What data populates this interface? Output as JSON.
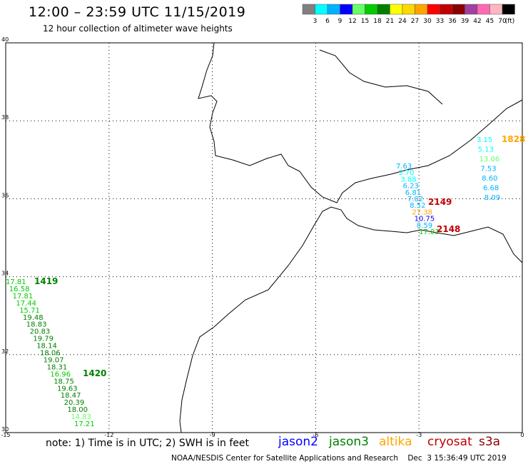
{
  "title": "12:00 – 23:59 UTC 11/15/2019",
  "subtitle": "12 hour collection of altimeter wave heights",
  "colorbar": {
    "unit": "(ft)",
    "bins": [
      {
        "label": "3",
        "color": "#808080"
      },
      {
        "label": "6",
        "color": "#00ffff"
      },
      {
        "label": "9",
        "color": "#00b2ff"
      },
      {
        "label": "12",
        "color": "#0000ff"
      },
      {
        "label": "15",
        "color": "#66ff66"
      },
      {
        "label": "18",
        "color": "#00cc00"
      },
      {
        "label": "21",
        "color": "#008000"
      },
      {
        "label": "24",
        "color": "#ffff00"
      },
      {
        "label": "27",
        "color": "#ffd700"
      },
      {
        "label": "30",
        "color": "#ffa500"
      },
      {
        "label": "33",
        "color": "#ff0000"
      },
      {
        "label": "36",
        "color": "#c00000"
      },
      {
        "label": "39",
        "color": "#8b0000"
      },
      {
        "label": "42",
        "color": "#a0409f"
      },
      {
        "label": "45",
        "color": "#ff69b4"
      },
      {
        "label": "70",
        "color": "#ffb6c1"
      },
      {
        "label": "",
        "color": "#000000"
      }
    ]
  },
  "axes": {
    "lat_ticks": [
      "40",
      "38",
      "36",
      "34",
      "32",
      "30"
    ],
    "lon_ticks": [
      "-15",
      "-12",
      "-9",
      "-6",
      "-3",
      "0"
    ]
  },
  "tracks": [
    {
      "satellite": "jason3",
      "time_labels": [
        "1419",
        "1420"
      ],
      "values": [
        "17.81",
        "16.58",
        "17.81",
        "17.44",
        "15.71",
        "19.48",
        "18.83",
        "20.83",
        "19.79",
        "18.14",
        "18.06",
        "19.07",
        "18.31",
        "16.96",
        "18.75",
        "19.63",
        "18.47",
        "20.39",
        "18.00",
        "14.83",
        "17.21"
      ]
    },
    {
      "satellite": "cryosat",
      "time_labels": [
        "2149",
        "2148"
      ],
      "values": [
        "7.63",
        "3.70",
        "3.88",
        "6.23",
        "6.81",
        "7.02",
        "8.52",
        "27.38",
        "10.75",
        "8.59",
        "17.03"
      ]
    },
    {
      "satellite": "altika",
      "time_labels": [
        "1828"
      ],
      "values": [
        "3.15",
        "5.13",
        "13.06",
        "7.53",
        "8.60",
        "6.68",
        "8.09"
      ]
    }
  ],
  "footer": {
    "note": "note:  1) Time is in UTC;  2) SWH is in feet",
    "satellites": [
      {
        "name": "jason2",
        "color": "#0000ff"
      },
      {
        "name": "jason3",
        "color": "#008000"
      },
      {
        "name": "altika",
        "color": "#ffa500"
      },
      {
        "name": "cryosat",
        "color": "#c00000"
      },
      {
        "name": "s3a",
        "color": "#8b0000"
      }
    ],
    "credit": "NOAA/NESDIS Center for Satellite Applications and Research    Dec  3 15:36:49 UTC 2019"
  }
}
